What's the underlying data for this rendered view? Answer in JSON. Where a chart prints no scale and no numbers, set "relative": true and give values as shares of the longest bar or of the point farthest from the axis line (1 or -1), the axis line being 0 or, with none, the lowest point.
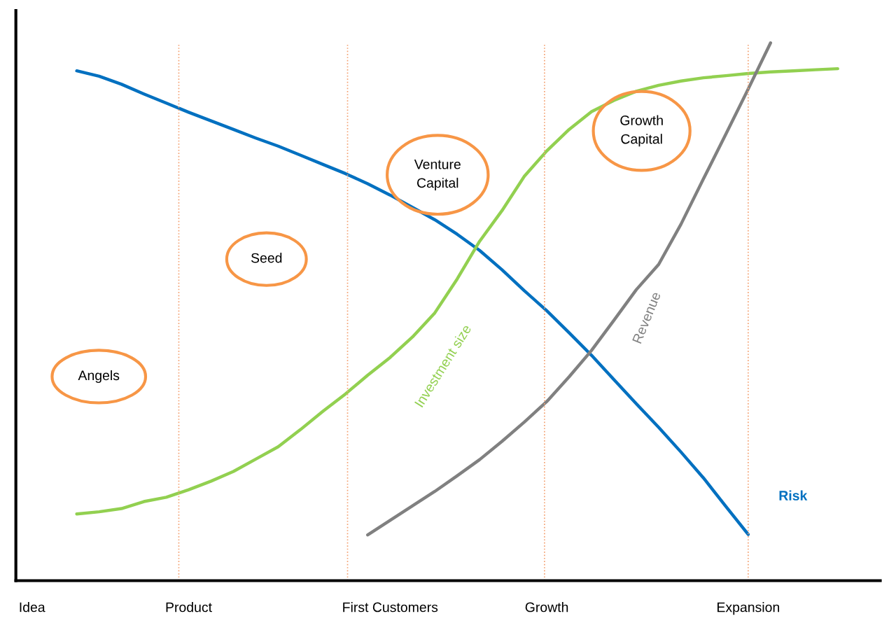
{
  "chart_data": {
    "type": "line",
    "relative": true,
    "categories": [
      "Idea",
      null,
      null,
      null,
      null,
      null,
      null,
      "Product",
      null,
      null,
      null,
      null,
      null,
      null,
      null,
      null,
      "First Customers",
      null,
      null,
      null,
      null,
      null,
      null,
      "Growth",
      null,
      null,
      null,
      null,
      null,
      null,
      null,
      null,
      "Expansion",
      null,
      null,
      null,
      null
    ],
    "series": [
      {
        "name": "Risk",
        "color": "#0070c0",
        "values": [
          null,
          null,
          0.948,
          0.938,
          0.923,
          0.905,
          0.888,
          0.871,
          0.855,
          0.839,
          0.823,
          0.808,
          0.791,
          0.774,
          0.757,
          0.738,
          0.717,
          0.694,
          0.671,
          0.644,
          0.614,
          0.578,
          0.539,
          0.502,
          0.461,
          0.419,
          0.374,
          0.329,
          0.285,
          0.239,
          0.191,
          0.138,
          0.086,
          null,
          null,
          null,
          null
        ]
      },
      {
        "name": "Investment size",
        "color": "#92d050",
        "values": [
          null,
          null,
          0.124,
          0.128,
          0.134,
          0.147,
          0.155,
          0.169,
          0.185,
          0.203,
          0.226,
          0.249,
          0.281,
          0.315,
          0.347,
          0.382,
          0.415,
          0.453,
          0.498,
          0.561,
          0.631,
          0.688,
          0.752,
          0.799,
          0.839,
          0.872,
          0.893,
          0.91,
          0.921,
          0.929,
          0.935,
          0.939,
          0.943,
          0.946,
          0.948,
          0.95,
          0.952
        ]
      },
      {
        "name": "Revenue",
        "color": "#808080",
        "values": [
          null,
          null,
          null,
          null,
          null,
          null,
          null,
          null,
          null,
          null,
          null,
          null,
          null,
          null,
          null,
          0.085,
          0.112,
          0.139,
          0.166,
          0.195,
          0.225,
          0.259,
          0.295,
          0.333,
          0.379,
          0.428,
          0.484,
          0.541,
          0.588,
          0.663,
          0.747,
          0.83,
          0.914,
          1.0,
          null,
          null,
          null
        ]
      }
    ],
    "annotations": [
      "Angels",
      "Seed",
      "Venture\nCapital",
      "Growth\nCapital"
    ],
    "grid": "x",
    "legend": false,
    "marker": "none",
    "line_style": "solid"
  }
}
